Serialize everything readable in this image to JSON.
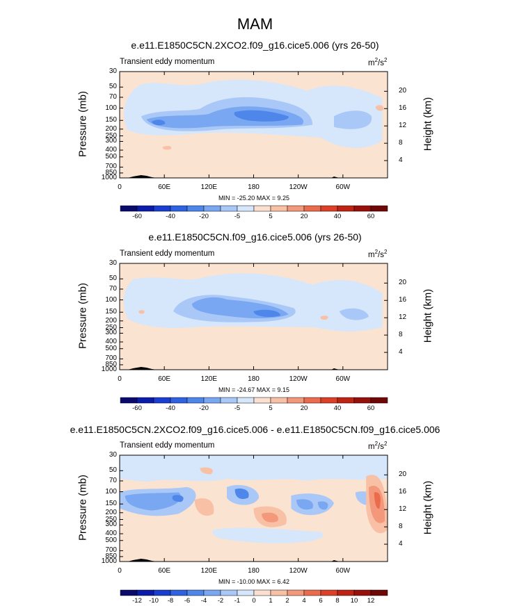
{
  "figure": {
    "title": "MAM"
  },
  "chart_data": [
    {
      "type": "heatmap",
      "title": "e.e11.E1850C5CN.2XCO2.f09_g16.cice5.006 (yrs 26-50)",
      "left_label": "Transient eddy momentum",
      "unit_base": "m",
      "unit_exp1": "2",
      "unit_sep": "/s",
      "unit_exp2": "2",
      "ylabel": "Pressure (mb)",
      "ylabel_right": "Height (km)",
      "y_ticks": [
        "30",
        "50",
        "70",
        "100",
        "150",
        "200",
        "250",
        "300",
        "400",
        "500",
        "700",
        "850",
        "1000"
      ],
      "y_ticks_right": [
        "20",
        "16",
        "12",
        "8",
        "4"
      ],
      "x_ticks": [
        "0",
        "60E",
        "120E",
        "180",
        "120W",
        "60W"
      ],
      "minmax": "MIN = -25.20  MAX =  9.25",
      "min": -25.2,
      "max": 9.25,
      "colorbar_labels": [
        "-60",
        "-40",
        "-20",
        "-5",
        "5",
        "20",
        "40",
        "60"
      ]
    },
    {
      "type": "heatmap",
      "title": "e.e11.E1850C5CN.f09_g16.cice5.006 (yrs 26-50)",
      "left_label": "Transient eddy momentum",
      "unit_base": "m",
      "unit_exp1": "2",
      "unit_sep": "/s",
      "unit_exp2": "2",
      "ylabel": "Pressure (mb)",
      "ylabel_right": "Height (km)",
      "y_ticks": [
        "30",
        "50",
        "70",
        "100",
        "150",
        "200",
        "250",
        "300",
        "400",
        "500",
        "700",
        "850",
        "1000"
      ],
      "y_ticks_right": [
        "20",
        "16",
        "12",
        "8",
        "4"
      ],
      "x_ticks": [
        "0",
        "60E",
        "120E",
        "180",
        "120W",
        "60W"
      ],
      "minmax": "MIN = -24.67  MAX =  9.15",
      "min": -24.67,
      "max": 9.15,
      "colorbar_labels": [
        "-60",
        "-40",
        "-20",
        "-5",
        "5",
        "20",
        "40",
        "60"
      ]
    },
    {
      "type": "heatmap",
      "title": "e.e11.E1850C5CN.2XCO2.f09_g16.cice5.006 - e.e11.E1850C5CN.f09_g16.cice5.006",
      "left_label": "Transient eddy momentum",
      "unit_base": "m",
      "unit_exp1": "2",
      "unit_sep": "/s",
      "unit_exp2": "2",
      "ylabel": "Pressure (mb)",
      "ylabel_right": "Height (km)",
      "y_ticks": [
        "30",
        "50",
        "70",
        "100",
        "150",
        "200",
        "250",
        "300",
        "400",
        "500",
        "700",
        "850",
        "1000"
      ],
      "y_ticks_right": [
        "20",
        "16",
        "12",
        "8",
        "4"
      ],
      "x_ticks": [
        "0",
        "60E",
        "120E",
        "180",
        "120W",
        "60W"
      ],
      "minmax": "MIN = -10.00  MAX =  6.42",
      "min": -10.0,
      "max": 6.42,
      "colorbar_labels": [
        "-12",
        "-10",
        "-8",
        "-6",
        "-4",
        "-2",
        "-1",
        "0",
        "1",
        "2",
        "4",
        "6",
        "8",
        "10",
        "12"
      ]
    }
  ],
  "colors": {
    "palette": [
      "#0a0a6e",
      "#0b1ca8",
      "#1a3fd0",
      "#2f62e0",
      "#4f86ea",
      "#7aa7f2",
      "#a9c8f7",
      "#d6e6fb",
      "#fbe0d0",
      "#f8c1a5",
      "#f3987a",
      "#ea6c4d",
      "#dc4027",
      "#bf2314",
      "#98100a",
      "#6e0706"
    ],
    "background_field": "#fbe3d2",
    "light_blue": "#d6e6fb"
  }
}
